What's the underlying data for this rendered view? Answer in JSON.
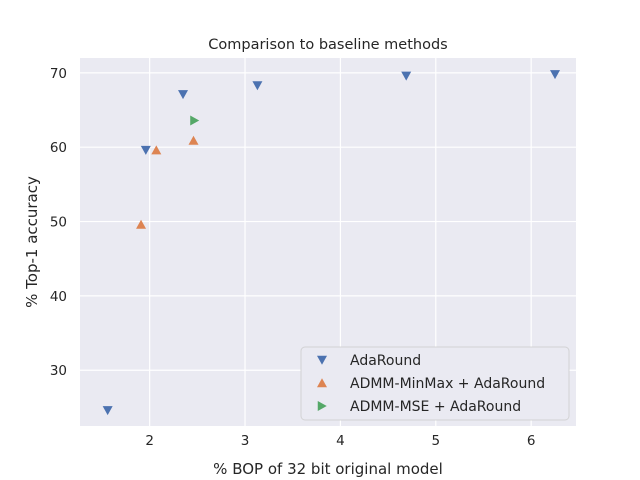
{
  "chart_data": {
    "type": "scatter",
    "title": "Comparison to baseline methods",
    "xlabel": "% BOP of 32 bit original model",
    "ylabel": "% Top-1 accuracy",
    "xlim": [
      1.27,
      6.47
    ],
    "ylim": [
      22.5,
      72.0
    ],
    "xticks": [
      2,
      3,
      4,
      5,
      6
    ],
    "yticks": [
      30,
      40,
      50,
      60,
      70
    ],
    "grid": true,
    "legend_position": "lower-right",
    "series": [
      {
        "name": "AdaRound",
        "marker": "triangle-down",
        "color": "#4c72b0",
        "points": [
          {
            "x": 1.56,
            "y": 24.6
          },
          {
            "x": 1.96,
            "y": 59.6
          },
          {
            "x": 2.35,
            "y": 67.1
          },
          {
            "x": 3.13,
            "y": 68.3
          },
          {
            "x": 4.69,
            "y": 69.6
          },
          {
            "x": 6.25,
            "y": 69.8
          }
        ]
      },
      {
        "name": "ADMM-MinMax + AdaRound",
        "marker": "triangle-up",
        "color": "#dd8452",
        "points": [
          {
            "x": 1.91,
            "y": 49.6
          },
          {
            "x": 2.07,
            "y": 59.6
          },
          {
            "x": 2.46,
            "y": 60.9
          }
        ]
      },
      {
        "name": "ADMM-MSE + AdaRound",
        "marker": "triangle-right",
        "color": "#55a868",
        "points": [
          {
            "x": 2.47,
            "y": 63.6
          }
        ]
      }
    ]
  }
}
